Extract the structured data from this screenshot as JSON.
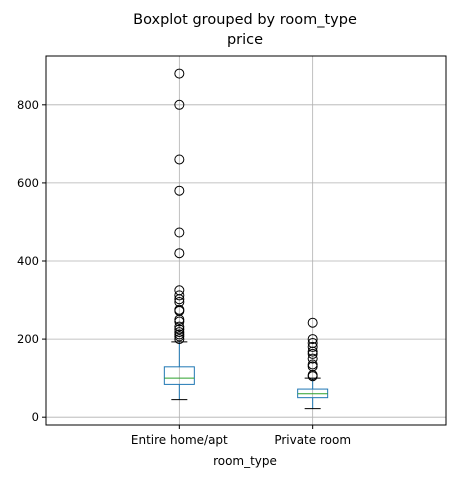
{
  "chart_data": {
    "type": "box",
    "suptitle": "Boxplot grouped by room_type",
    "title": "price",
    "xlabel": "room_type",
    "ylabel": "",
    "ylim": [
      -20,
      925
    ],
    "yticks": [
      0,
      200,
      400,
      600,
      800
    ],
    "grid": true,
    "categories": [
      "Entire home/apt",
      "Private room"
    ],
    "boxes": [
      {
        "category": "Entire home/apt",
        "whisker_low": 45,
        "q1": 84,
        "median": 100,
        "q3": 129,
        "whisker_high": 193,
        "outliers": [
          880,
          800,
          660,
          580,
          473,
          420,
          325,
          312,
          302,
          295,
          275,
          272,
          250,
          245,
          232,
          225,
          218,
          212,
          207,
          200
        ]
      },
      {
        "category": "Private room",
        "whisker_low": 22,
        "q1": 50,
        "median": 60,
        "q3": 72,
        "whisker_high": 100,
        "outliers": [
          242,
          200,
          190,
          180,
          168,
          162,
          150,
          135,
          130,
          108,
          105
        ]
      }
    ],
    "colors": {
      "box": "#1f77b4",
      "median": "#2ca02c",
      "whisker": "#1f77b4",
      "cap": "#000000",
      "flier": "#000000",
      "grid": "#b0b0b0",
      "axes": "#000000"
    }
  }
}
